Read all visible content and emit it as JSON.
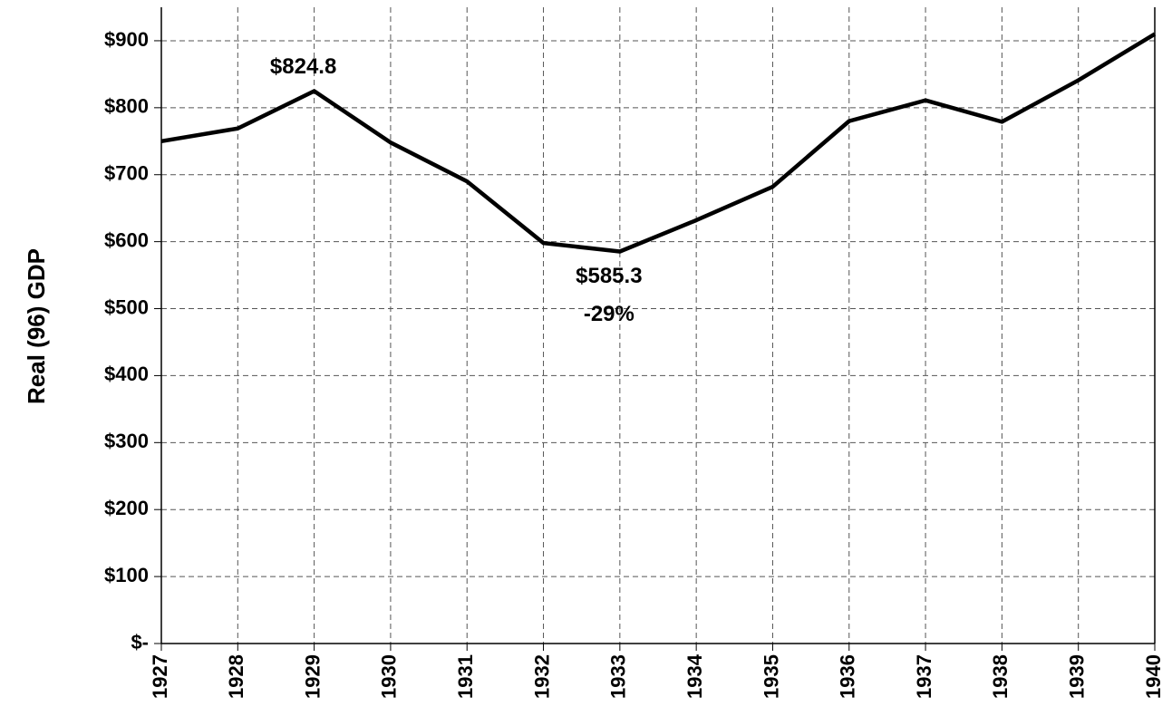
{
  "chart_data": {
    "type": "line",
    "ylabel": "Real (96) GDP",
    "categories": [
      "1927",
      "1928",
      "1929",
      "1930",
      "1931",
      "1932",
      "1933",
      "1934",
      "1935",
      "1936",
      "1937",
      "1938",
      "1939",
      "1940"
    ],
    "series": [
      {
        "name": "Real GDP",
        "color": "#000000",
        "values": [
          750,
          769,
          824.8,
          748,
          690,
          598,
          585.3,
          632,
          682,
          780,
          811,
          779,
          841,
          910
        ]
      }
    ],
    "ylim": [
      0,
      950
    ],
    "yticks": [
      {
        "value": 0,
        "label": "$-"
      },
      {
        "value": 100,
        "label": "$100"
      },
      {
        "value": 200,
        "label": "$200"
      },
      {
        "value": 300,
        "label": "$300"
      },
      {
        "value": 400,
        "label": "$400"
      },
      {
        "value": 500,
        "label": "$500"
      },
      {
        "value": 600,
        "label": "$600"
      },
      {
        "value": 700,
        "label": "$700"
      },
      {
        "value": 800,
        "label": "$800"
      },
      {
        "value": 900,
        "label": "$900"
      }
    ],
    "grid": true,
    "annotations": [
      {
        "text": "$824.8",
        "category": "1929"
      },
      {
        "text": "$585.3",
        "category": "1933"
      },
      {
        "text": "-29%",
        "category": "1933"
      }
    ]
  }
}
